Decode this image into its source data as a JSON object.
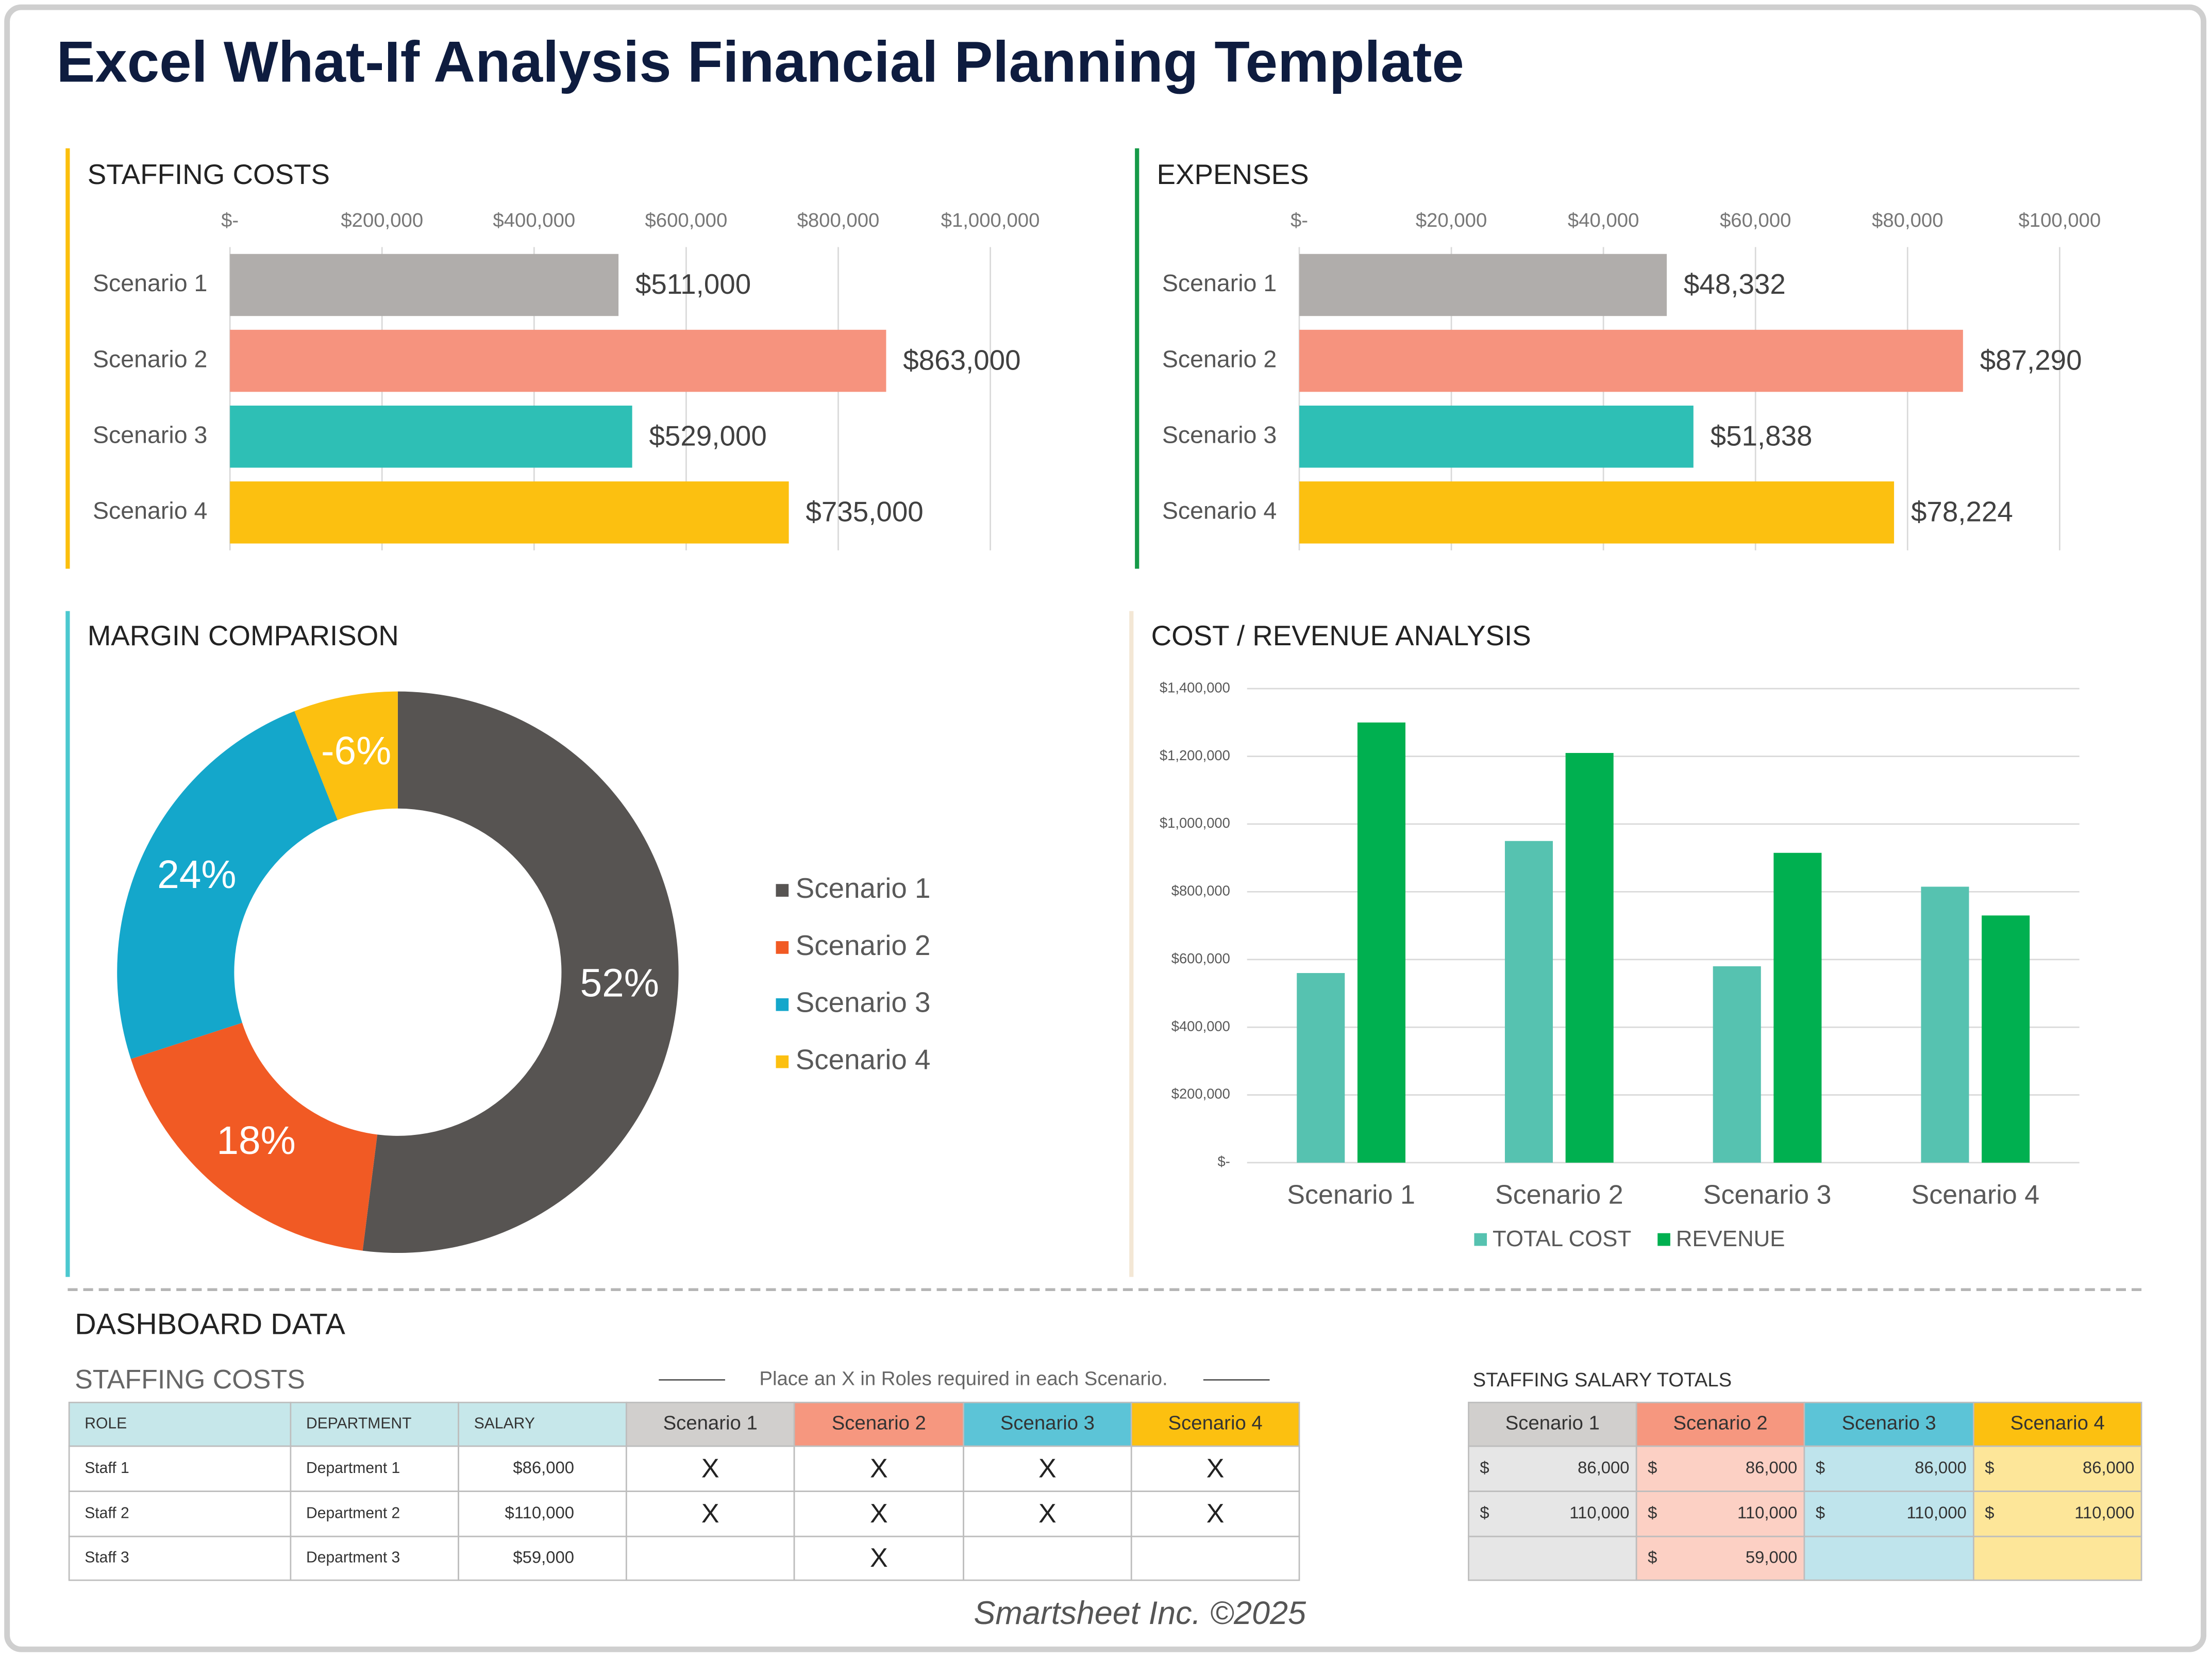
{
  "title": "Excel What-If Analysis Financial Planning Template",
  "chart_data": [
    {
      "type": "bar",
      "orientation": "horizontal",
      "title": "STAFFING COSTS",
      "categories": [
        "Scenario 1",
        "Scenario 2",
        "Scenario 3",
        "Scenario 4"
      ],
      "values": [
        511000,
        863000,
        529000,
        735000
      ],
      "value_labels": [
        "$511,000",
        "$863,000",
        "$529,000",
        "$735,000"
      ],
      "colors": [
        "#b0adab",
        "#f6937e",
        "#2ebfb5",
        "#fcc010"
      ],
      "xlim": [
        0,
        1000000
      ],
      "xticks": [
        {
          "value": 0,
          "label": "$-"
        },
        {
          "value": 200000,
          "label": "$200,000"
        },
        {
          "value": 400000,
          "label": "$400,000"
        },
        {
          "value": 600000,
          "label": "$600,000"
        },
        {
          "value": 800000,
          "label": "$800,000"
        },
        {
          "value": 1000000,
          "label": "$1,000,000"
        }
      ],
      "grid": true,
      "accent_color": "#fbbf0d"
    },
    {
      "type": "bar",
      "orientation": "horizontal",
      "title": "EXPENSES",
      "categories": [
        "Scenario 1",
        "Scenario 2",
        "Scenario 3",
        "Scenario 4"
      ],
      "values": [
        48332,
        87290,
        51838,
        78224
      ],
      "value_labels": [
        "$48,332",
        "$87,290",
        "$51,838",
        "$78,224"
      ],
      "colors": [
        "#b0adab",
        "#f6937e",
        "#2ebfb5",
        "#fcc010"
      ],
      "xlim": [
        0,
        100000
      ],
      "xticks": [
        {
          "value": 0,
          "label": "$-"
        },
        {
          "value": 20000,
          "label": "$20,000"
        },
        {
          "value": 40000,
          "label": "$40,000"
        },
        {
          "value": 60000,
          "label": "$60,000"
        },
        {
          "value": 80000,
          "label": "$80,000"
        },
        {
          "value": 100000,
          "label": "$100,000"
        }
      ],
      "grid": true,
      "accent_color": "#169a48"
    },
    {
      "type": "donut",
      "title": "MARGIN COMPARISON",
      "categories": [
        "Scenario 1",
        "Scenario 2",
        "Scenario 3",
        "Scenario 4"
      ],
      "values": [
        52,
        18,
        24,
        -6
      ],
      "value_labels": [
        "52%",
        "18%",
        "24%",
        "-6%"
      ],
      "colors": [
        "#575452",
        "#f15a24",
        "#14a7cb",
        "#fcc010"
      ],
      "legend": "right",
      "accent_color": "#4bc8cf"
    },
    {
      "type": "bar",
      "orientation": "vertical",
      "title": "COST / REVENUE ANALYSIS",
      "categories": [
        "Scenario 1",
        "Scenario 2",
        "Scenario 3",
        "Scenario 4"
      ],
      "series": [
        {
          "name": "TOTAL COST",
          "color": "#56c2b0",
          "values": [
            560000,
            950000,
            580000,
            815000
          ]
        },
        {
          "name": "REVENUE",
          "color": "#00b050",
          "values": [
            1300000,
            1210000,
            915000,
            730000
          ]
        }
      ],
      "ylim": [
        0,
        1400000
      ],
      "yticks": [
        {
          "value": 0,
          "label": "$-"
        },
        {
          "value": 200000,
          "label": "$200,000"
        },
        {
          "value": 400000,
          "label": "$400,000"
        },
        {
          "value": 600000,
          "label": "$600,000"
        },
        {
          "value": 800000,
          "label": "$800,000"
        },
        {
          "value": 1000000,
          "label": "$1,000,000"
        },
        {
          "value": 1200000,
          "label": "$1,200,000"
        },
        {
          "value": 1400000,
          "label": "$1,400,000"
        }
      ],
      "grid": true,
      "legend": "bottom",
      "accent_color": "#f3e7d5"
    }
  ],
  "dashboard": {
    "title": "DASHBOARD DATA",
    "staffing_costs": {
      "title": "STAFFING COSTS",
      "instruction": "Place an X in Roles required in each Scenario.",
      "columns": [
        "ROLE",
        "DEPARTMENT",
        "SALARY",
        "Scenario 1",
        "Scenario 2",
        "Scenario 3",
        "Scenario 4"
      ],
      "rows": [
        [
          "Staff 1",
          "Department 1",
          "$86,000",
          "X",
          "X",
          "X",
          "X"
        ],
        [
          "Staff 2",
          "Department 2",
          "$110,000",
          "X",
          "X",
          "X",
          "X"
        ],
        [
          "Staff 3",
          "Department 3",
          "$59,000",
          null,
          "X",
          null,
          null
        ]
      ]
    },
    "salary_totals": {
      "title": "STAFFING SALARY TOTALS",
      "currency": "$",
      "columns": [
        "Scenario 1",
        "Scenario 2",
        "Scenario 3",
        "Scenario 4"
      ],
      "rows": [
        [
          "86,000",
          "86,000",
          "86,000",
          "86,000"
        ],
        [
          "110,000",
          "110,000",
          "110,000",
          "110,000"
        ],
        [
          null,
          "59,000",
          null,
          null
        ]
      ]
    }
  },
  "footer": "Smartsheet Inc. ©2025"
}
